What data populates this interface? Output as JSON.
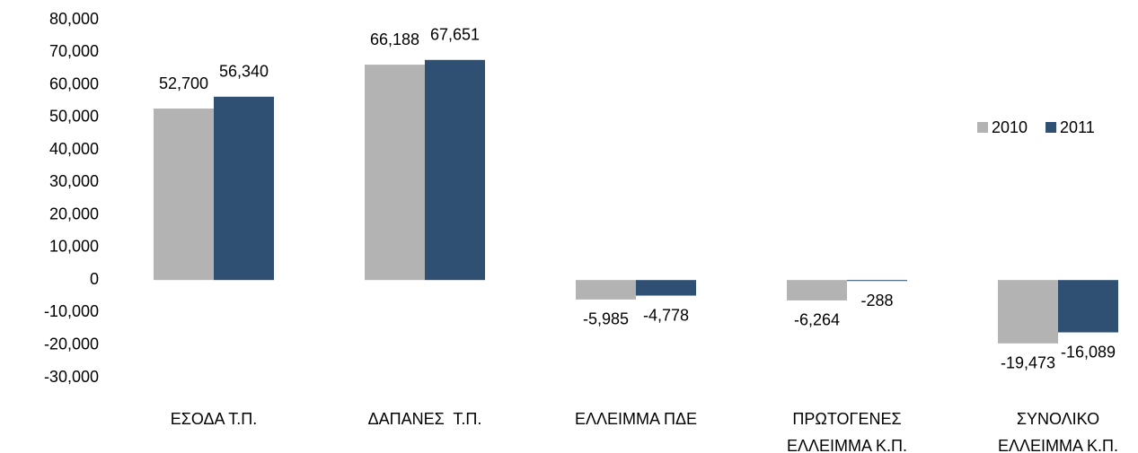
{
  "chart_data": {
    "type": "bar",
    "categories": [
      [
        "ΕΣΟΔΑ Τ.Π."
      ],
      [
        "ΔΑΠΑΝΕΣ  Τ.Π."
      ],
      [
        "ΕΛΛΕΙΜΜΑ ΠΔΕ"
      ],
      [
        "ΠΡΩΤΟΓΕΝΕΣ",
        "ΕΛΛΕΙΜΜΑ Κ.Π."
      ],
      [
        "ΣΥΝΟΛΙΚΟ",
        "ΕΛΛΕΙΜΜΑ Κ.Π."
      ]
    ],
    "series": [
      {
        "name": "2010",
        "color": "#b3b3b3",
        "values": [
          52700,
          66188,
          -5985,
          -6264,
          -19473
        ],
        "value_labels": [
          "52,700",
          "66,188",
          "-5,985",
          "-6,264",
          "-19,473"
        ]
      },
      {
        "name": "2011",
        "color": "#2f5073",
        "values": [
          56340,
          67651,
          -4778,
          -288,
          -16089
        ],
        "value_labels": [
          "56,340",
          "67,651",
          "-4,778",
          "-288",
          "-16,089"
        ]
      }
    ],
    "ylim": [
      -30000,
      80000
    ],
    "yticks": [
      {
        "value": -30000,
        "label": "-30,000"
      },
      {
        "value": -20000,
        "label": "-20,000"
      },
      {
        "value": -10000,
        "label": "-10,000"
      },
      0,
      {
        "value": 10000,
        "label": "10,000"
      },
      {
        "value": 20000,
        "label": "20,000"
      },
      {
        "value": 30000,
        "label": "30,000"
      },
      {
        "value": 40000,
        "label": "40,000"
      },
      {
        "value": 50000,
        "label": "50,000"
      },
      {
        "value": 60000,
        "label": "60,000"
      },
      {
        "value": 70000,
        "label": "70,000"
      },
      {
        "value": 80000,
        "label": "80,000"
      }
    ],
    "grid": false,
    "legend": "right"
  }
}
